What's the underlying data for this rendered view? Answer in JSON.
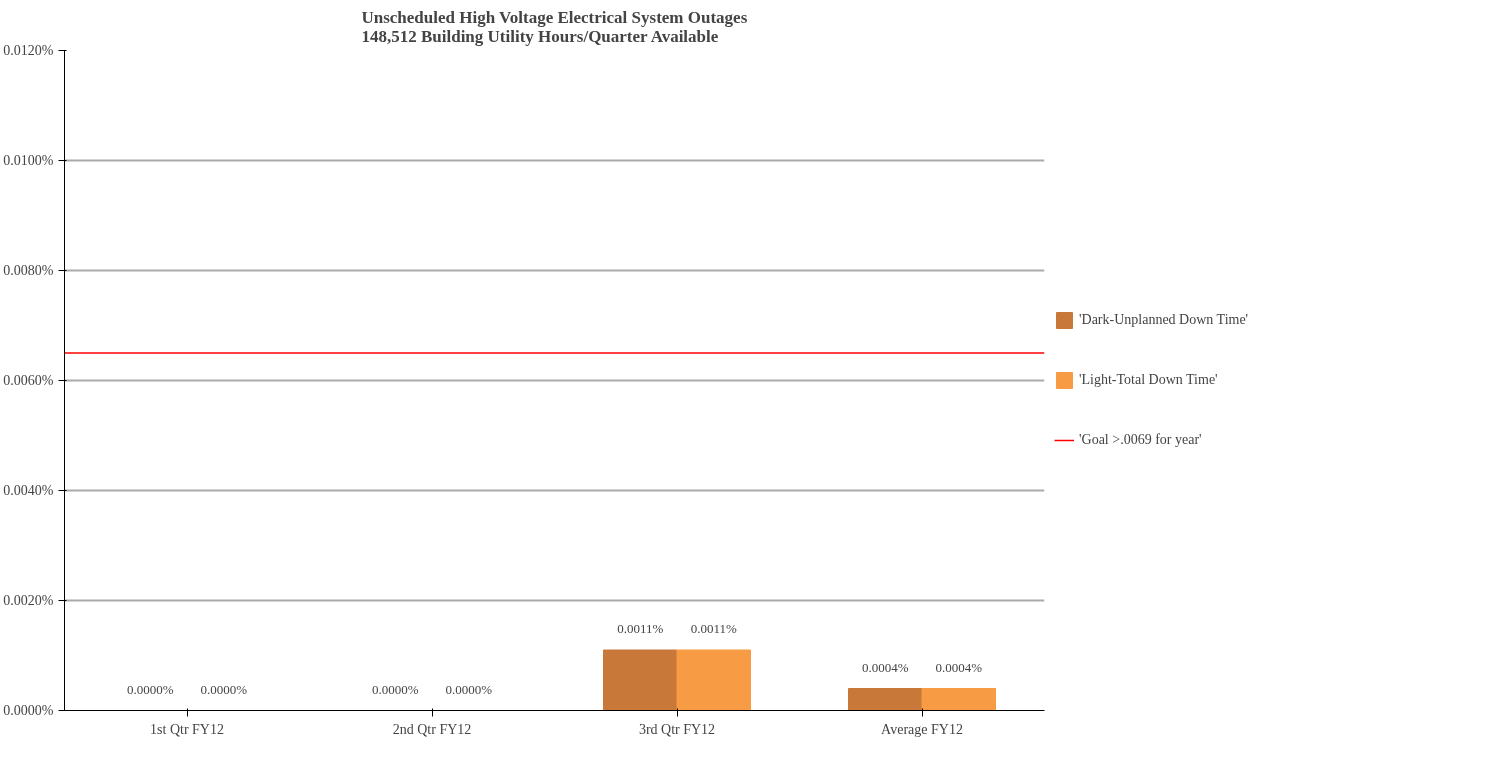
{
  "chart_data": {
    "type": "bar",
    "title": "Unscheduled High Voltage Electrical System Outages\n148,512 Building Utility Hours/Quarter Available",
    "categories": [
      "1st Qtr FY12",
      "2nd Qtr FY12",
      "3rd Qtr FY12",
      "Average FY12"
    ],
    "series": [
      {
        "name": "'Dark-Unplanned Down Time'",
        "color": "#c8793a",
        "values": [
          0,
          0,
          0.0011,
          0.0004
        ],
        "value_labels": [
          "0.0000%",
          "0.0000%",
          "0.0011%",
          "0.0004%"
        ]
      },
      {
        "name": "'Light-Total Down Time'",
        "color": "#f79b45",
        "values": [
          0,
          0,
          0.0011,
          0.0004
        ],
        "value_labels": [
          "0.0000%",
          "0.0000%",
          "0.0011%",
          "0.0004%"
        ]
      }
    ],
    "ylim": [
      0,
      0.012
    ],
    "yticks": [
      {
        "value": 0,
        "label": "0.0000%"
      },
      {
        "value": 0.002,
        "label": "0.0020%"
      },
      {
        "value": 0.004,
        "label": "0.0040%"
      },
      {
        "value": 0.006,
        "label": "0.0060%"
      },
      {
        "value": 0.008,
        "label": "0.0080%"
      },
      {
        "value": 0.01,
        "label": "0.0100%"
      },
      {
        "value": 0.012,
        "label": "0.0120%"
      }
    ],
    "ref_lines": [
      {
        "axis": "y",
        "value": 0.0065,
        "label": "'Goal >.0069 for year'",
        "color": "#ff0000"
      }
    ],
    "grid": "y",
    "legend": "right"
  }
}
